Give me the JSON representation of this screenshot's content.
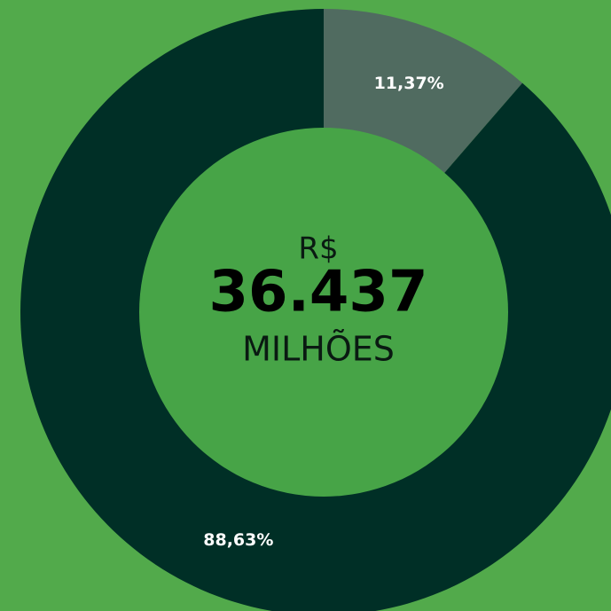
{
  "chart_data": {
    "type": "donut",
    "categories": [
      null,
      null
    ],
    "values": [
      11.37,
      88.63
    ],
    "value_labels": [
      "11,37%",
      "88,63%"
    ],
    "colors": [
      "#506b60",
      "#002f26"
    ],
    "center_prefix": "R$",
    "center_value": "36.437",
    "center_unit": "MILHÕES"
  }
}
